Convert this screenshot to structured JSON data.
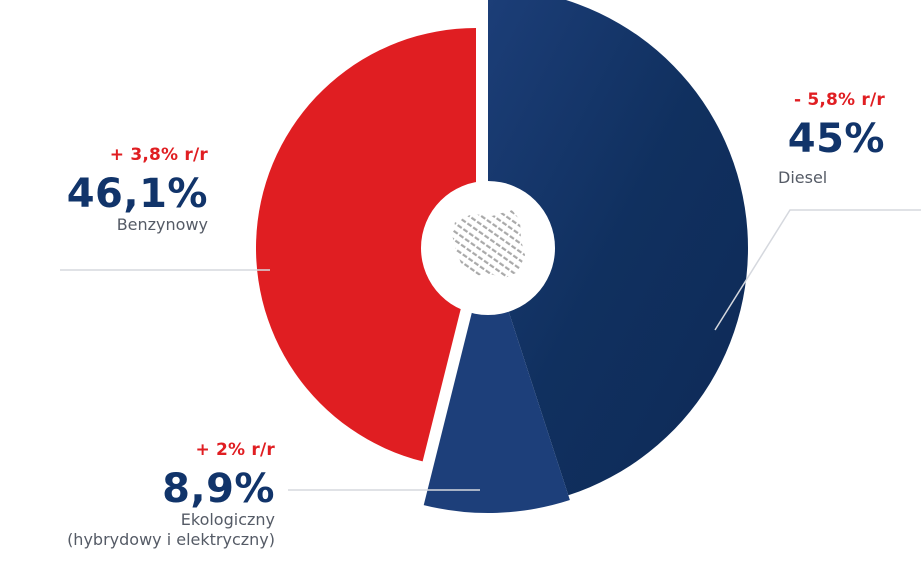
{
  "chart_data": {
    "type": "pie",
    "slices": [
      {
        "key": "benzyna",
        "value": 46.1,
        "value_label": "46,1%",
        "label": "Benzynowy",
        "change_label": "+ 3,8% r/r",
        "color": "#e01e22"
      },
      {
        "key": "diesel",
        "value": 45,
        "value_label": "45%",
        "label": "Diesel",
        "change_label": "- 5,8% r/r",
        "color": "#11346a"
      },
      {
        "key": "eco",
        "value": 8.9,
        "value_label": "8,9%",
        "label": "Ekologiczny",
        "label_line2": "(hybrydowy i elektryczny)",
        "change_label": "+ 2% r/r",
        "color": "#1d3f7a"
      }
    ]
  },
  "colors": {
    "change_text": "#e01e22",
    "value_text": "#11346a",
    "name_text": "#555b66",
    "leader_line": "#d5d8de",
    "center_circle": "#ffffff",
    "map_pattern": "#9a9a9a"
  },
  "icons": {
    "center": "poland-map-icon"
  }
}
